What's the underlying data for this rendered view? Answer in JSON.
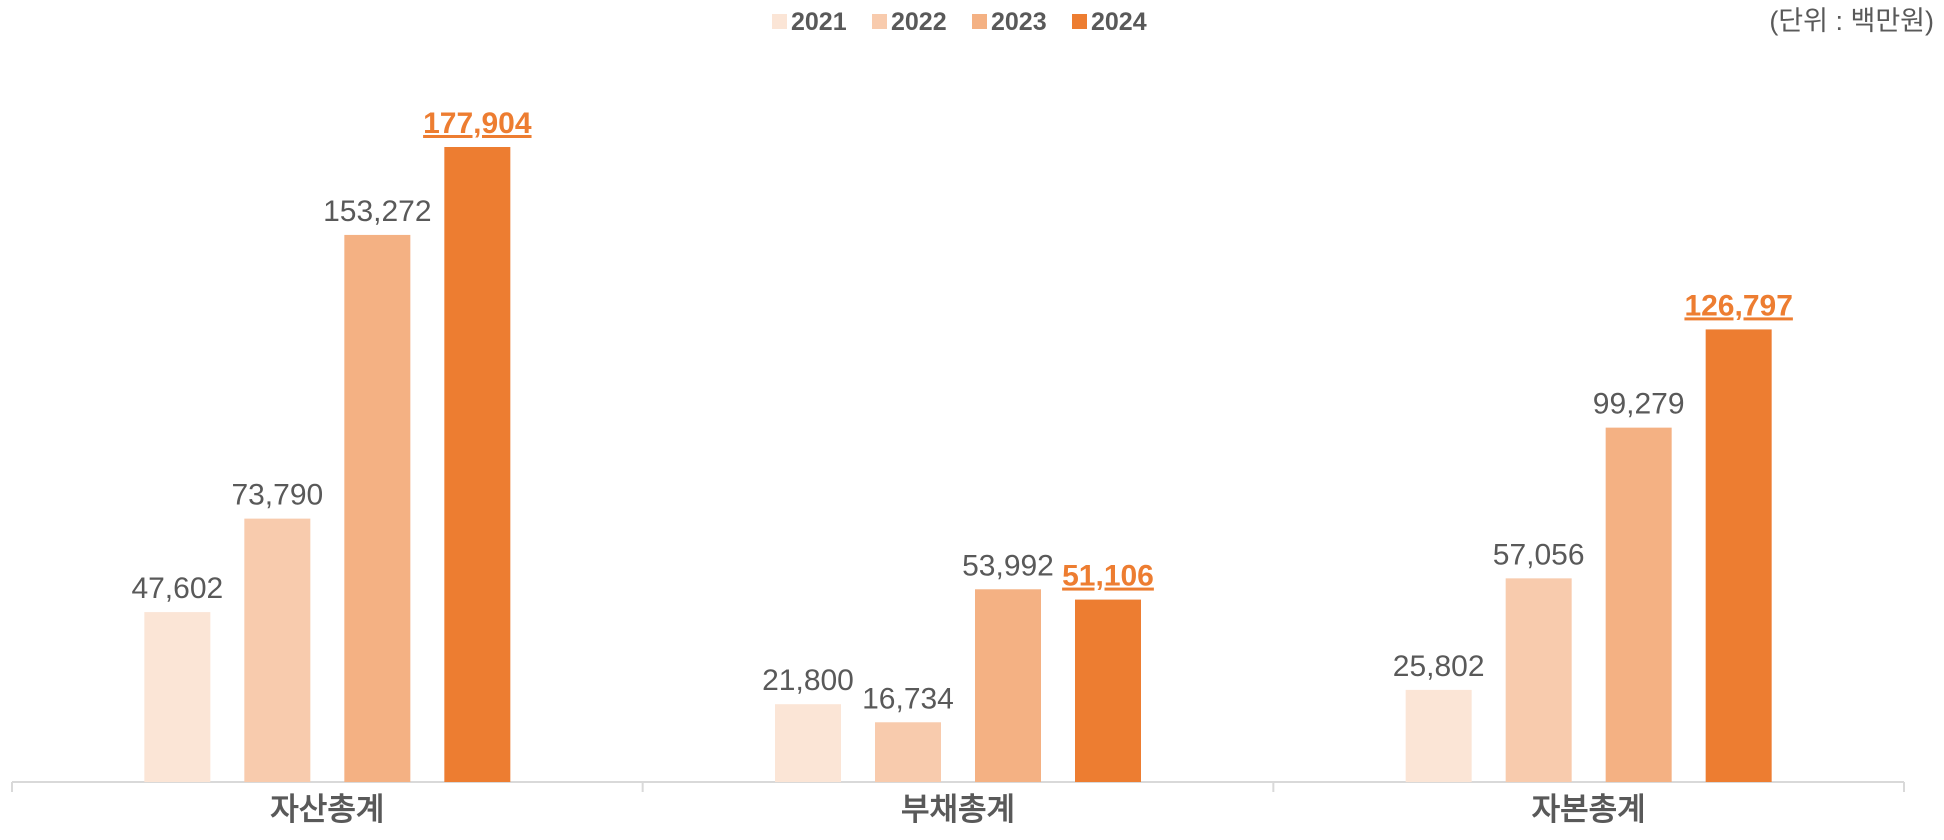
{
  "chart_data": {
    "type": "bar",
    "unit_note": "(단위 : 백만원)",
    "categories": [
      "자산총계",
      "부채총계",
      "자본총계"
    ],
    "legend": "top",
    "series": [
      {
        "name": "2021",
        "color": "#FBE5D6",
        "values": [
          47602,
          21800,
          25802
        ],
        "value_labels": [
          "47,602",
          "21,800",
          "25,802"
        ]
      },
      {
        "name": "2022",
        "color": "#F8CBAD",
        "values": [
          73790,
          16734,
          57056
        ],
        "value_labels": [
          "73,790",
          "16,734",
          "57,056"
        ]
      },
      {
        "name": "2023",
        "color": "#F4B183",
        "values": [
          153272,
          53992,
          99279
        ],
        "value_labels": [
          "153,272",
          "53,992",
          "99,279"
        ]
      },
      {
        "name": "2024",
        "color": "#ED7D31",
        "values": [
          177904,
          51106,
          126797
        ],
        "value_labels": [
          "177,904",
          "51,106",
          "126,797"
        ],
        "highlight": true
      }
    ]
  }
}
